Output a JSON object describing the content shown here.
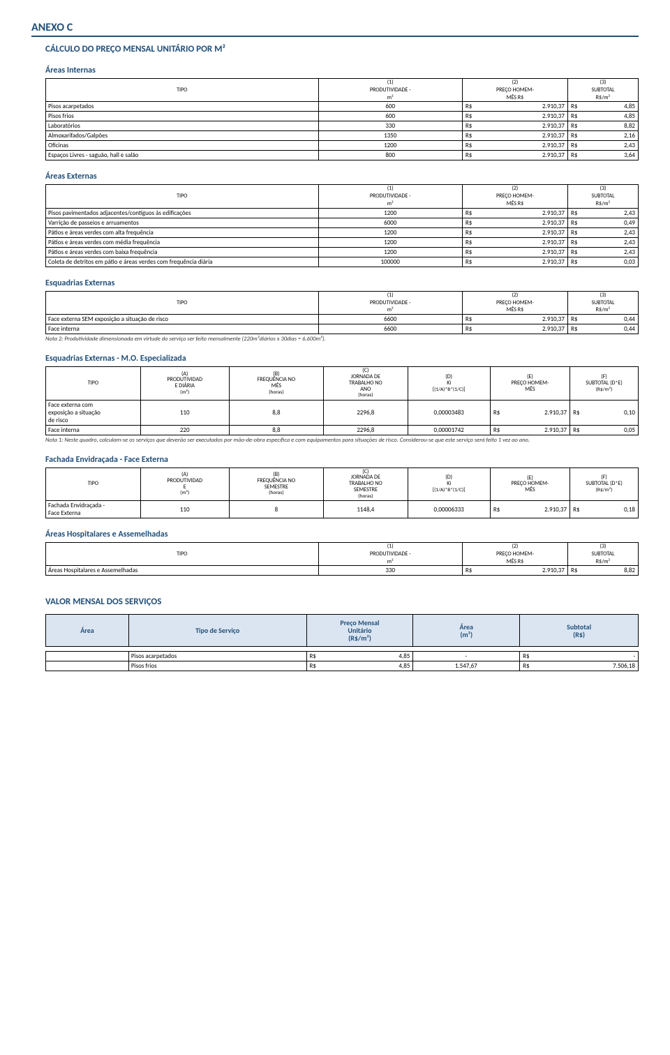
{
  "page": {
    "anexo": "ANEXO C",
    "calc_title": "CÁLCULO DO PREÇO MENSAL UNITÁRIO POR M²"
  },
  "headers3": {
    "tipo": "TIPO",
    "col1": "(1)\nPRODUTIVIDADE -\nm²",
    "col2": "(2)\nPREÇO HOMEM-\nMÊS R$",
    "col3": "(3)\nSUBTOTAL\nR$/m²",
    "col1_l1": "(1)",
    "col1_l2": "PRODUTIVIDADE -",
    "col1_l3": "m²",
    "col2_l1": "(2)",
    "col2_l2": "PREÇO HOMEM-",
    "col2_l3": "MÊS R$",
    "col3_l1": "(3)",
    "col3_l2": "SUBTOTAL",
    "col3_l3": "R$/m²"
  },
  "areas_internas": {
    "title": "Áreas Internas",
    "rows": [
      {
        "tipo": "Pisos acarpetados",
        "prod": "600",
        "rs1": "R$",
        "p": "2.910,37",
        "rs2": "R$",
        "sub": "4,85"
      },
      {
        "tipo": "Pisos frios",
        "prod": "600",
        "rs1": "R$",
        "p": "2.910,37",
        "rs2": "R$",
        "sub": "4,85"
      },
      {
        "tipo": "Laboratórios",
        "prod": "330",
        "rs1": "R$",
        "p": "2.910,37",
        "rs2": "R$",
        "sub": "8,82"
      },
      {
        "tipo": "Almoxarifados/Galpões",
        "prod": "1350",
        "rs1": "R$",
        "p": "2.910,37",
        "rs2": "R$",
        "sub": "2,16"
      },
      {
        "tipo": "Oficinas",
        "prod": "1200",
        "rs1": "R$",
        "p": "2.910,37",
        "rs2": "R$",
        "sub": "2,43"
      },
      {
        "tipo": "Espaços Livres - saguão, hall e salão",
        "prod": "800",
        "rs1": "R$",
        "p": "2.910,37",
        "rs2": "R$",
        "sub": "3,64"
      }
    ]
  },
  "areas_externas": {
    "title": "Áreas Externas",
    "rows": [
      {
        "tipo": "Pisos pavimentados adjacentes/contíguos às edificações",
        "prod": "1200",
        "rs1": "R$",
        "p": "2.910,37",
        "rs2": "R$",
        "sub": "2,43"
      },
      {
        "tipo": "Varrição de passeios e arruamentos",
        "prod": "6000",
        "rs1": "R$",
        "p": "2.910,37",
        "rs2": "R$",
        "sub": "0,49"
      },
      {
        "tipo": "Pátios e áreas verdes com alta frequência",
        "prod": "1200",
        "rs1": "R$",
        "p": "2.910,37",
        "rs2": "R$",
        "sub": "2,43"
      },
      {
        "tipo": "Pátios e áreas verdes com média frequência",
        "prod": "1200",
        "rs1": "R$",
        "p": "2.910,37",
        "rs2": "R$",
        "sub": "2,43"
      },
      {
        "tipo": "Pátios e áreas verdes com baixa frequência",
        "prod": "1200",
        "rs1": "R$",
        "p": "2.910,37",
        "rs2": "R$",
        "sub": "2,43"
      },
      {
        "tipo": "Coleta de detritos em pátio e áreas verdes com frequência diária",
        "prod": "100000",
        "rs1": "R$",
        "p": "2.910,37",
        "rs2": "R$",
        "sub": "0,03"
      }
    ]
  },
  "esquadrias_externas": {
    "title": "Esquadrias Externas",
    "rows": [
      {
        "tipo": "Face externa SEM exposição a situação de risco",
        "prod": "6600",
        "rs1": "R$",
        "p": "2.910,37",
        "rs2": "R$",
        "sub": "0,44"
      },
      {
        "tipo": "Face interna",
        "prod": "6600",
        "rs1": "R$",
        "p": "2.910,37",
        "rs2": "R$",
        "sub": "0,44"
      }
    ],
    "note": "Nota 2: Produtividade dimensionada em virtude do serviço ser feito mensalmente (220m²diários x 30dias = 6.600m²)."
  },
  "esq_especializada": {
    "title": "Esquadrias Externas - M.O. Especializada",
    "headers": {
      "A_l1": "(A)",
      "A_l2": "PRODUTIVIDAD",
      "A_l3": "E DIÁRIA",
      "A_l4": "(m²)",
      "B_l1": "(B)",
      "B_l2": "FREQUÊNCIA NO",
      "B_l3": "MÊS",
      "B_l4": "(horas)",
      "C_l1": "(C)",
      "C_l2": "JORNADA DE",
      "C_l3": "TRABALHO NO",
      "C_l4": "ANO",
      "C_l5": "(horas)",
      "D_l1": "(D)",
      "D_l2": "Ki",
      "D_l3": "[(1/A)*B*(1/C)]",
      "E_l1": "(E)",
      "E_l2": "PREÇO HOMEM-",
      "E_l3": "MÊS",
      "F_l1": "(F)",
      "F_l2": "SUBTOTAL (D*E)",
      "F_l3": "(R$/m²)"
    },
    "rows": [
      {
        "tipo": "Face externa com\nexposição a situação\nde risco",
        "A": "110",
        "B": "8,8",
        "C": "2296,8",
        "D": "0,00003483",
        "rsE": "R$",
        "E": "2.910,37",
        "rsF": "R$",
        "F": "0,10"
      },
      {
        "tipo": "Face interna",
        "A": "220",
        "B": "8,8",
        "C": "2296,8",
        "D": "0,00001742",
        "rsE": "R$",
        "E": "2.910,37",
        "rsF": "R$",
        "F": "0,05"
      }
    ],
    "note": "Nota 1: Neste quadro, calculam-se os serviços que deverão ser executados por mão-de-obra específica e com equipamentos para situações de risco. Considerou-se que este serviço será feito 1 vez ao ano."
  },
  "fachada": {
    "title": "Fachada Envidraçada - Face Externa",
    "headers": {
      "A_l1": "(A)",
      "A_l2": "PRODUTIVIDAD",
      "A_l3": "E",
      "A_l4": "(m²)",
      "B_l1": "(B)",
      "B_l2": "FREQUÊNCIA NO",
      "B_l3": "SEMESTRE",
      "B_l4": "(horas)",
      "C_l1": "(C)",
      "C_l2": "JORNADA DE",
      "C_l3": "TRABALHO NO",
      "C_l4": "SEMESTRE",
      "C_l5": "(horas)",
      "D_l1": "(D)",
      "D_l2": "Ki",
      "D_l3": "[(1/A)*B*(1/C)]",
      "E_l1": "(E)",
      "E_l2": "PREÇO HOMEM-",
      "E_l3": "MÊS",
      "F_l1": "(F)",
      "F_l2": "SUBTOTAL (D*E)",
      "F_l3": "(R$/m²)"
    },
    "rows": [
      {
        "tipo": "Fachada Envidraçada -\nFace Externa",
        "A": "110",
        "B": "8",
        "C": "1148,4",
        "D": "0,00006333",
        "rsE": "R$",
        "E": "2.910,37",
        "rsF": "R$",
        "F": "0,18"
      }
    ]
  },
  "hospitalares": {
    "title": "Áreas Hospitalares e Assemelhadas",
    "rows": [
      {
        "tipo": "Áreas Hospitalares e Assemelhadas",
        "prod": "330",
        "rs1": "R$",
        "p": "2.910,37",
        "rs2": "R$",
        "sub": "8,82"
      }
    ]
  },
  "valor_mensal": {
    "title": "VALOR MENSAL DOS SERVIÇOS",
    "headers": {
      "area": "Área",
      "tipo": "Tipo de Serviço",
      "preco": "Preço Mensal\nUnitário\n(R$/m²)",
      "preco_l1": "Preço Mensal",
      "preco_l2": "Unitário",
      "preco_l3": "(R$/m²)",
      "aream2": "Área\n(m²)",
      "aream2_l1": "Área",
      "aream2_l2": "(m²)",
      "subtotal": "Subtotal\n(R$)",
      "subtotal_l1": "Subtotal",
      "subtotal_l2": "(R$)"
    },
    "rows": [
      {
        "area": "",
        "tipo": "Pisos acarpetados",
        "rs1": "R$",
        "preco": "4,85",
        "aream2": "-",
        "rs2": "R$",
        "sub": "-"
      },
      {
        "area": "",
        "tipo": "Pisos frios",
        "rs1": "R$",
        "preco": "4,85",
        "aream2": "1.547,67",
        "rs2": "R$",
        "sub": "7.506,18"
      }
    ]
  }
}
